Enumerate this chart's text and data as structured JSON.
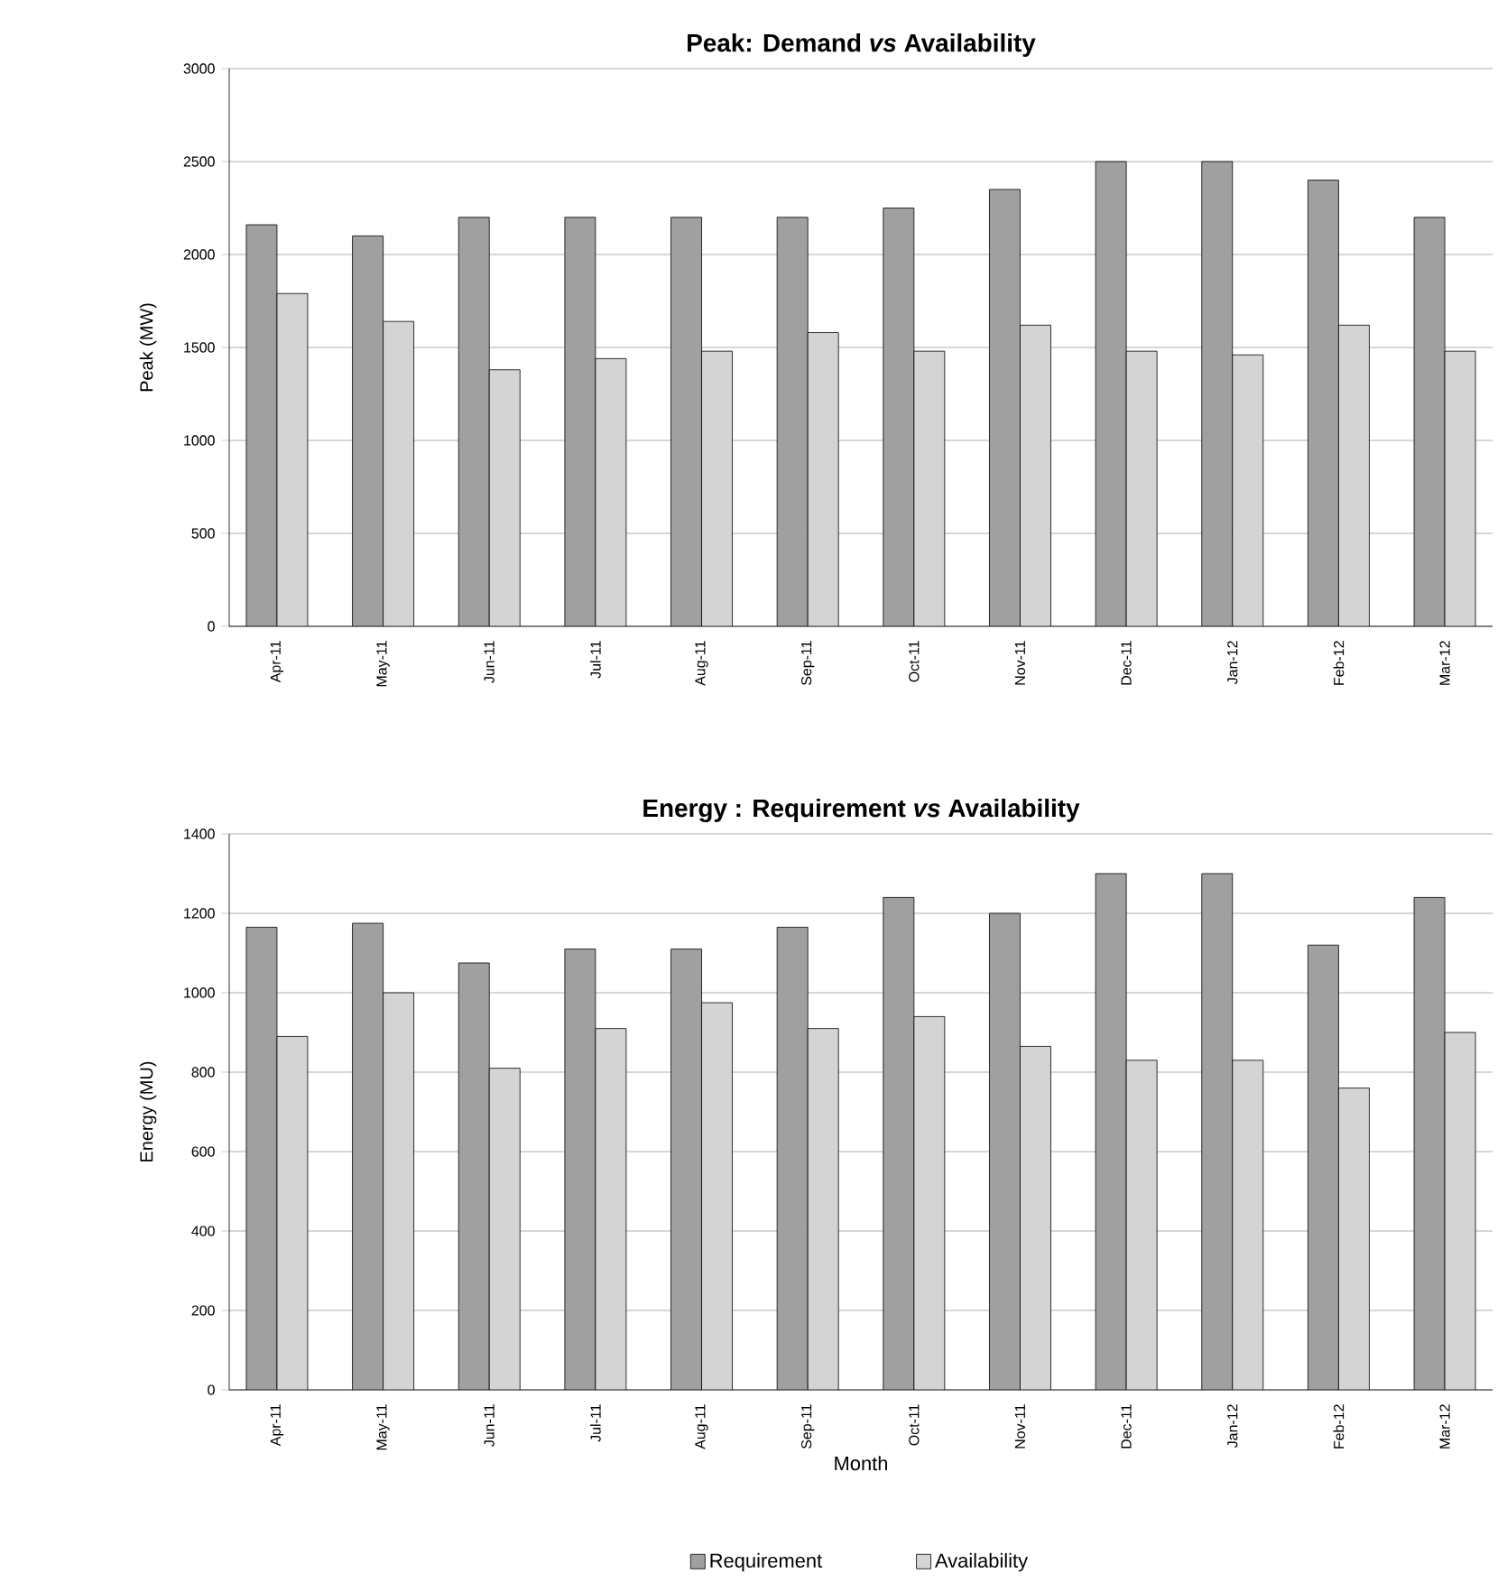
{
  "chart_data": [
    {
      "type": "bar",
      "title": "Peak: Demand *vs* Availability",
      "ylabel": "Peak (MW)",
      "categories": [
        "Apr-11",
        "May-11",
        "Jun-11",
        "Jul-11",
        "Aug-11",
        "Sep-11",
        "Oct-11",
        "Nov-11",
        "Dec-11",
        "Jan-12",
        "Feb-12",
        "Mar-12"
      ],
      "series": [
        {
          "color": "#a0a0a0",
          "values": [
            2160,
            2100,
            2200,
            2200,
            2200,
            2200,
            2250,
            2350,
            2500,
            2500,
            2400,
            2200
          ]
        },
        {
          "color": "#d4d4d4",
          "values": [
            1790,
            1640,
            1380,
            1440,
            1480,
            1580,
            1480,
            1620,
            1480,
            1460,
            1620,
            1480
          ]
        }
      ],
      "ylim": [
        0,
        3000
      ],
      "yticks": [
        0,
        500,
        1000,
        1500,
        2000,
        2500,
        3000
      ],
      "grid": "y"
    },
    {
      "type": "bar",
      "title": "Energy :  Requirement *vs* Availability",
      "ylabel": "Energy (MU)",
      "xlabel": "Month",
      "categories": [
        "Apr-11",
        "May-11",
        "Jun-11",
        "Jul-11",
        "Aug-11",
        "Sep-11",
        "Oct-11",
        "Nov-11",
        "Dec-11",
        "Jan-12",
        "Feb-12",
        "Mar-12"
      ],
      "series": [
        {
          "name": "Requirement",
          "color": "#a0a0a0",
          "values": [
            1165,
            1175,
            1075,
            1110,
            1110,
            1165,
            1240,
            1200,
            1300,
            1300,
            1120,
            1240
          ]
        },
        {
          "name": "Availability",
          "color": "#d4d4d4",
          "values": [
            890,
            1000,
            810,
            910,
            975,
            910,
            940,
            865,
            830,
            830,
            760,
            900
          ]
        }
      ],
      "ylim": [
        0,
        1400
      ],
      "yticks": [
        0,
        200,
        400,
        600,
        800,
        1000,
        1200,
        1400
      ],
      "grid": "y",
      "legend": "bottom"
    }
  ]
}
